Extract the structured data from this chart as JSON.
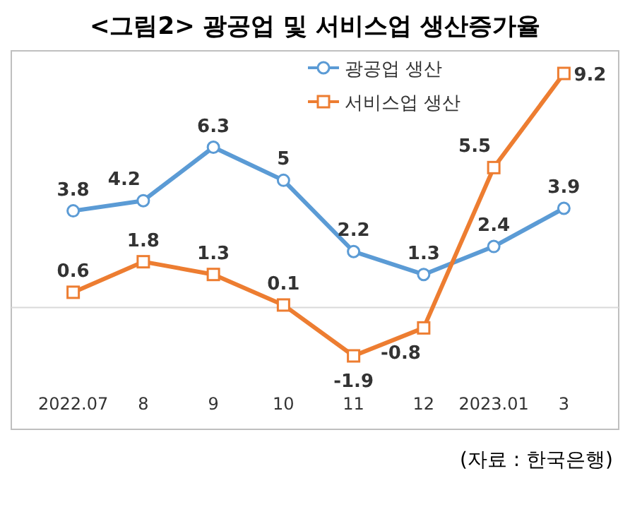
{
  "chart_data": {
    "type": "line",
    "title": "<그림2> 광공업 및 서비스업 생산증가율",
    "categories": [
      "2022.07",
      "8",
      "9",
      "10",
      "11",
      "12",
      "2023.01",
      "3"
    ],
    "series": [
      {
        "name": "광공업 생산",
        "color": "#5b9bd5",
        "values": [
          3.8,
          4.2,
          6.3,
          5,
          2.2,
          1.3,
          2.4,
          3.9
        ]
      },
      {
        "name": "서비스업 생산",
        "color": "#ed7d31",
        "marker": "square",
        "values": [
          0.6,
          1.8,
          1.3,
          0.1,
          -1.9,
          -0.8,
          5.5,
          9.2
        ]
      }
    ],
    "marker": "circle",
    "data_labels": true,
    "legend": "top",
    "annotations": [
      "(자료 : 한국은행)"
    ]
  }
}
